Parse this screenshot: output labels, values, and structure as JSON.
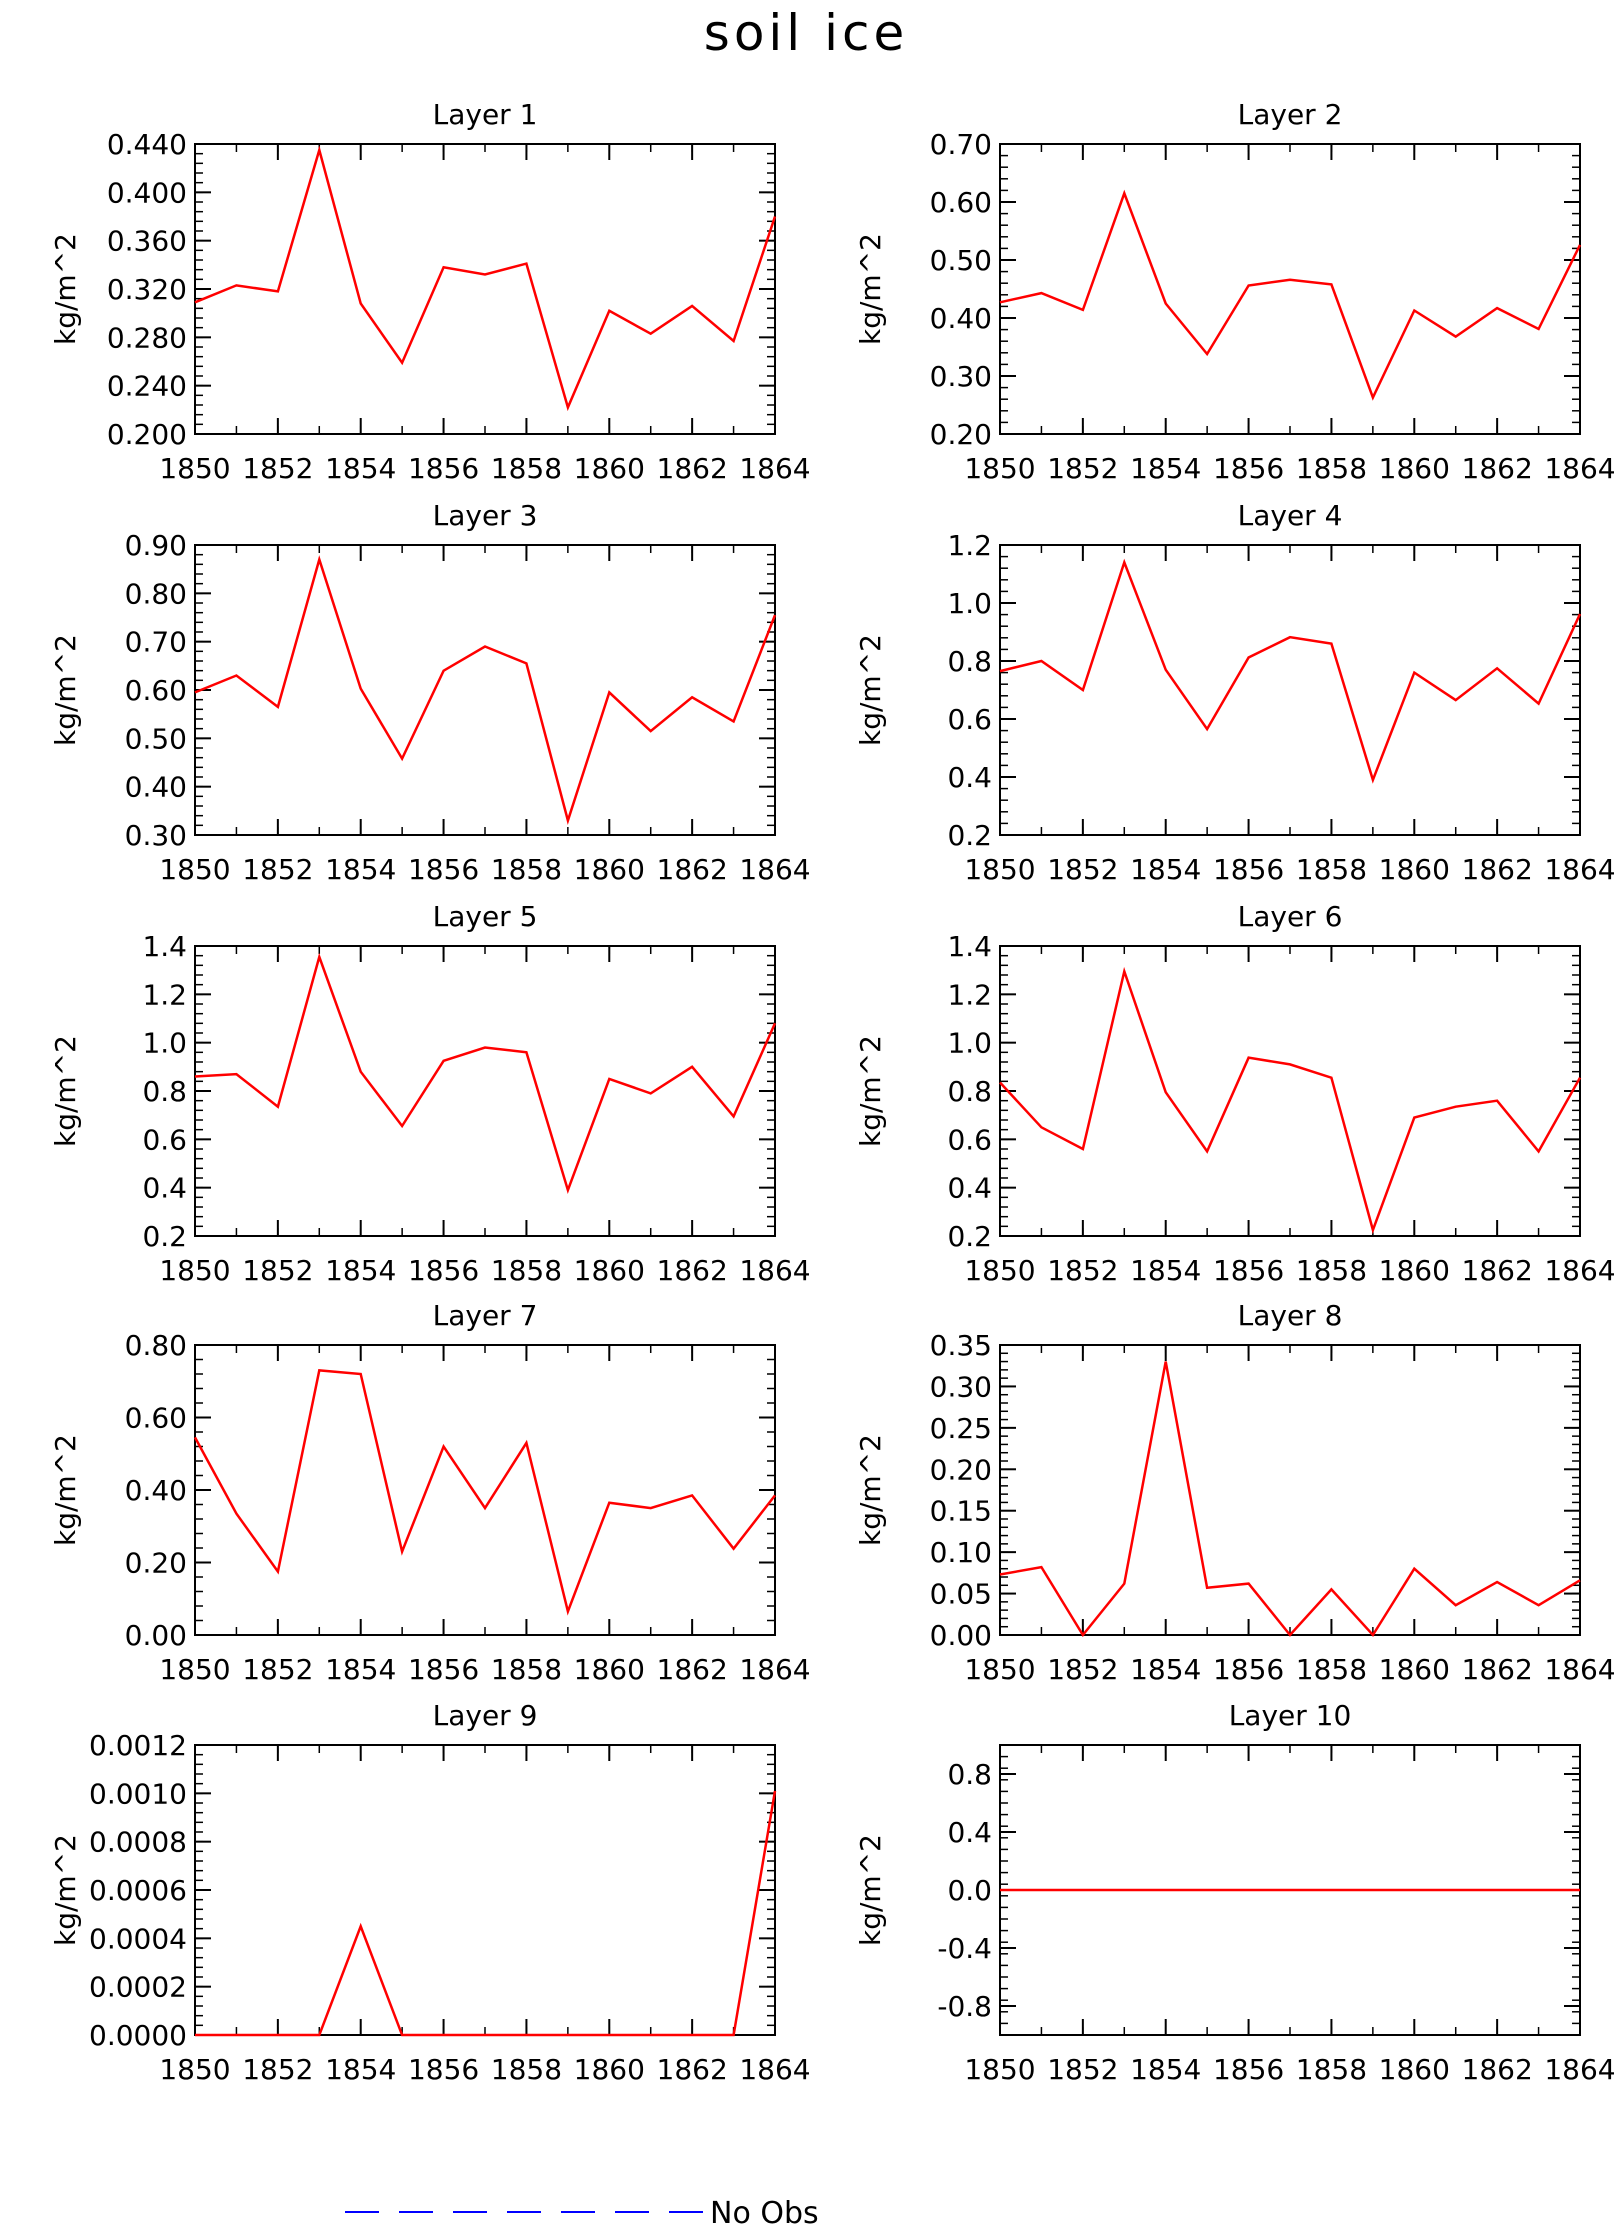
{
  "title": "soil ice",
  "legend": {
    "label": "No Obs",
    "color": "#0000ff",
    "style": "dashed"
  },
  "colors": {
    "series": "#ff0000",
    "axis": "#000000"
  },
  "chart_data": [
    {
      "type": "line",
      "title": "Layer 1",
      "ylabel": "kg/m^2",
      "x": [
        1850,
        1851,
        1852,
        1853,
        1854,
        1855,
        1856,
        1857,
        1858,
        1859,
        1860,
        1861,
        1862,
        1863,
        1864
      ],
      "xticks": [
        "1850",
        "1852",
        "1854",
        "1856",
        "1858",
        "1860",
        "1862",
        "1864"
      ],
      "yticks": [
        "0.200",
        "0.240",
        "0.280",
        "0.320",
        "0.360",
        "0.400",
        "0.440"
      ],
      "ylim": [
        0.2,
        0.44
      ],
      "minor_step": 0.008,
      "series": [
        {
          "color": "#ff0000",
          "values": [
            0.309,
            0.323,
            0.318,
            0.435,
            0.308,
            0.259,
            0.338,
            0.332,
            0.341,
            0.222,
            0.302,
            0.283,
            0.306,
            0.277,
            0.38
          ]
        }
      ]
    },
    {
      "type": "line",
      "title": "Layer 2",
      "ylabel": "kg/m^2",
      "x": [
        1850,
        1851,
        1852,
        1853,
        1854,
        1855,
        1856,
        1857,
        1858,
        1859,
        1860,
        1861,
        1862,
        1863,
        1864
      ],
      "xticks": [
        "1850",
        "1852",
        "1854",
        "1856",
        "1858",
        "1860",
        "1862",
        "1864"
      ],
      "yticks": [
        "0.20",
        "0.30",
        "0.40",
        "0.50",
        "0.60",
        "0.70"
      ],
      "ylim": [
        0.2,
        0.7
      ],
      "minor_step": 0.02,
      "series": [
        {
          "color": "#ff0000",
          "values": [
            0.427,
            0.443,
            0.414,
            0.615,
            0.425,
            0.338,
            0.456,
            0.466,
            0.458,
            0.263,
            0.413,
            0.368,
            0.417,
            0.381,
            0.526
          ]
        }
      ]
    },
    {
      "type": "line",
      "title": "Layer 3",
      "ylabel": "kg/m^2",
      "x": [
        1850,
        1851,
        1852,
        1853,
        1854,
        1855,
        1856,
        1857,
        1858,
        1859,
        1860,
        1861,
        1862,
        1863,
        1864
      ],
      "xticks": [
        "1850",
        "1852",
        "1854",
        "1856",
        "1858",
        "1860",
        "1862",
        "1864"
      ],
      "yticks": [
        "0.30",
        "0.40",
        "0.50",
        "0.60",
        "0.70",
        "0.80",
        "0.90"
      ],
      "ylim": [
        0.3,
        0.9
      ],
      "minor_step": 0.02,
      "series": [
        {
          "color": "#ff0000",
          "values": [
            0.595,
            0.63,
            0.565,
            0.87,
            0.603,
            0.458,
            0.64,
            0.69,
            0.655,
            0.33,
            0.595,
            0.515,
            0.585,
            0.535,
            0.755
          ]
        }
      ]
    },
    {
      "type": "line",
      "title": "Layer 4",
      "ylabel": "kg/m^2",
      "x": [
        1850,
        1851,
        1852,
        1853,
        1854,
        1855,
        1856,
        1857,
        1858,
        1859,
        1860,
        1861,
        1862,
        1863,
        1864
      ],
      "xticks": [
        "1850",
        "1852",
        "1854",
        "1856",
        "1858",
        "1860",
        "1862",
        "1864"
      ],
      "yticks": [
        "0.2",
        "0.4",
        "0.6",
        "0.8",
        "1.0",
        "1.2"
      ],
      "ylim": [
        0.2,
        1.2
      ],
      "minor_step": 0.04,
      "series": [
        {
          "color": "#ff0000",
          "values": [
            0.765,
            0.8,
            0.7,
            1.14,
            0.77,
            0.565,
            0.812,
            0.882,
            0.86,
            0.39,
            0.76,
            0.665,
            0.775,
            0.653,
            0.962
          ]
        }
      ]
    },
    {
      "type": "line",
      "title": "Layer 5",
      "ylabel": "kg/m^2",
      "x": [
        1850,
        1851,
        1852,
        1853,
        1854,
        1855,
        1856,
        1857,
        1858,
        1859,
        1860,
        1861,
        1862,
        1863,
        1864
      ],
      "xticks": [
        "1850",
        "1852",
        "1854",
        "1856",
        "1858",
        "1860",
        "1862",
        "1864"
      ],
      "yticks": [
        "0.2",
        "0.4",
        "0.6",
        "0.8",
        "1.0",
        "1.2",
        "1.4"
      ],
      "ylim": [
        0.2,
        1.4
      ],
      "minor_step": 0.04,
      "series": [
        {
          "color": "#ff0000",
          "values": [
            0.86,
            0.87,
            0.735,
            1.355,
            0.88,
            0.655,
            0.925,
            0.98,
            0.96,
            0.39,
            0.85,
            0.79,
            0.9,
            0.695,
            1.08
          ]
        }
      ]
    },
    {
      "type": "line",
      "title": "Layer 6",
      "ylabel": "kg/m^2",
      "x": [
        1850,
        1851,
        1852,
        1853,
        1854,
        1855,
        1856,
        1857,
        1858,
        1859,
        1860,
        1861,
        1862,
        1863,
        1864
      ],
      "xticks": [
        "1850",
        "1852",
        "1854",
        "1856",
        "1858",
        "1860",
        "1862",
        "1864"
      ],
      "yticks": [
        "0.2",
        "0.4",
        "0.6",
        "0.8",
        "1.0",
        "1.2",
        "1.4"
      ],
      "ylim": [
        0.2,
        1.4
      ],
      "minor_step": 0.04,
      "series": [
        {
          "color": "#ff0000",
          "values": [
            0.835,
            0.65,
            0.56,
            1.295,
            0.795,
            0.55,
            0.938,
            0.91,
            0.855,
            0.225,
            0.69,
            0.735,
            0.76,
            0.55,
            0.855
          ]
        }
      ]
    },
    {
      "type": "line",
      "title": "Layer 7",
      "ylabel": "kg/m^2",
      "x": [
        1850,
        1851,
        1852,
        1853,
        1854,
        1855,
        1856,
        1857,
        1858,
        1859,
        1860,
        1861,
        1862,
        1863,
        1864
      ],
      "xticks": [
        "1850",
        "1852",
        "1854",
        "1856",
        "1858",
        "1860",
        "1862",
        "1864"
      ],
      "yticks": [
        "0.00",
        "0.20",
        "0.40",
        "0.60",
        "0.80"
      ],
      "ylim": [
        0.0,
        0.8
      ],
      "minor_step": 0.04,
      "series": [
        {
          "color": "#ff0000",
          "values": [
            0.545,
            0.335,
            0.175,
            0.73,
            0.72,
            0.23,
            0.52,
            0.35,
            0.53,
            0.065,
            0.365,
            0.35,
            0.385,
            0.238,
            0.385
          ]
        }
      ]
    },
    {
      "type": "line",
      "title": "Layer 8",
      "ylabel": "kg/m^2",
      "x": [
        1850,
        1851,
        1852,
        1853,
        1854,
        1855,
        1856,
        1857,
        1858,
        1859,
        1860,
        1861,
        1862,
        1863,
        1864
      ],
      "xticks": [
        "1850",
        "1852",
        "1854",
        "1856",
        "1858",
        "1860",
        "1862",
        "1864"
      ],
      "yticks": [
        "0.00",
        "0.05",
        "0.10",
        "0.15",
        "0.20",
        "0.25",
        "0.30",
        "0.35"
      ],
      "ylim": [
        0.0,
        0.35
      ],
      "minor_step": 0.01,
      "series": [
        {
          "color": "#ff0000",
          "values": [
            0.073,
            0.082,
            0.0,
            0.062,
            0.33,
            0.057,
            0.062,
            0.0,
            0.055,
            0.0,
            0.08,
            0.036,
            0.064,
            0.036,
            0.066
          ]
        }
      ]
    },
    {
      "type": "line",
      "title": "Layer 9",
      "ylabel": "kg/m^2",
      "x": [
        1850,
        1851,
        1852,
        1853,
        1854,
        1855,
        1856,
        1857,
        1858,
        1859,
        1860,
        1861,
        1862,
        1863,
        1864
      ],
      "xticks": [
        "1850",
        "1852",
        "1854",
        "1856",
        "1858",
        "1860",
        "1862",
        "1864"
      ],
      "yticks": [
        "0.0000",
        "0.0002",
        "0.0004",
        "0.0006",
        "0.0008",
        "0.0010",
        "0.0012"
      ],
      "ylim": [
        0.0,
        0.0012
      ],
      "minor_step": 4e-05,
      "series": [
        {
          "color": "#ff0000",
          "values": [
            0,
            0,
            0,
            0,
            0.00045,
            0,
            0,
            0,
            0,
            0,
            0,
            0,
            0,
            0,
            0.00101
          ]
        }
      ]
    },
    {
      "type": "line",
      "title": "Layer 10",
      "ylabel": "kg/m^2",
      "x": [
        1850,
        1851,
        1852,
        1853,
        1854,
        1855,
        1856,
        1857,
        1858,
        1859,
        1860,
        1861,
        1862,
        1863,
        1864
      ],
      "xticks": [
        "1850",
        "1852",
        "1854",
        "1856",
        "1858",
        "1860",
        "1862",
        "1864"
      ],
      "yticks": [
        "-0.8",
        "-0.4",
        "0.0",
        "0.4",
        "0.8"
      ],
      "ylim": [
        -1.0,
        1.0
      ],
      "minor_step": 0.08,
      "series": [
        {
          "color": "#ff0000",
          "values": [
            0,
            0,
            0,
            0,
            0,
            0,
            0,
            0,
            0,
            0,
            0,
            0,
            0,
            0,
            0
          ]
        }
      ]
    }
  ]
}
